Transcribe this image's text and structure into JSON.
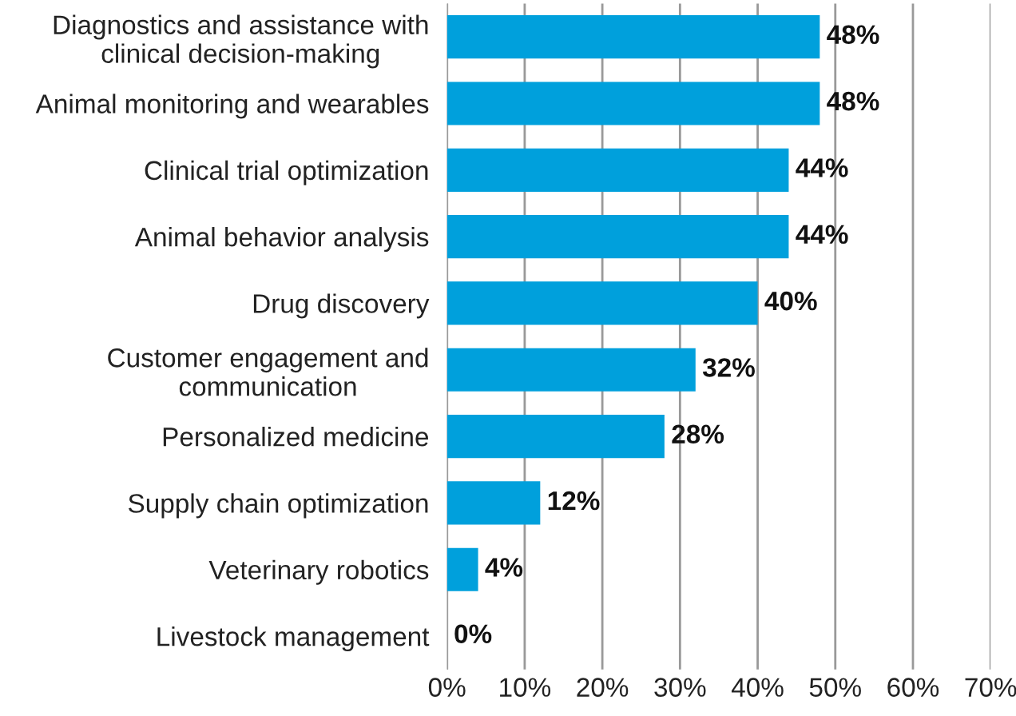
{
  "chart_data": {
    "type": "bar",
    "orientation": "horizontal",
    "categories": [
      "Diagnostics and assistance with\nclinical decision-making",
      "Animal monitoring and wearables",
      "Clinical trial optimization",
      "Animal behavior analysis",
      "Drug discovery",
      "Customer engagement and\ncommunication",
      "Personalized medicine",
      "Supply chain optimization",
      "Veterinary robotics",
      "Livestock management"
    ],
    "values": [
      48,
      48,
      44,
      44,
      40,
      32,
      28,
      12,
      4,
      0
    ],
    "value_labels": [
      "48%",
      "48%",
      "44%",
      "44%",
      "40%",
      "32%",
      "28%",
      "12%",
      "4%",
      "0%"
    ],
    "color": "#00a0dc",
    "xlim": [
      0,
      70
    ],
    "xticks": [
      {
        "value": 0,
        "label": "0%"
      },
      {
        "value": 10,
        "label": "10%"
      },
      {
        "value": 20,
        "label": "20%"
      },
      {
        "value": 30,
        "label": "30%"
      },
      {
        "value": 40,
        "label": "40%"
      },
      {
        "value": 50,
        "label": "50%"
      },
      {
        "value": 60,
        "label": "60%"
      },
      {
        "value": 70,
        "label": "70%"
      }
    ],
    "grid": "x"
  }
}
